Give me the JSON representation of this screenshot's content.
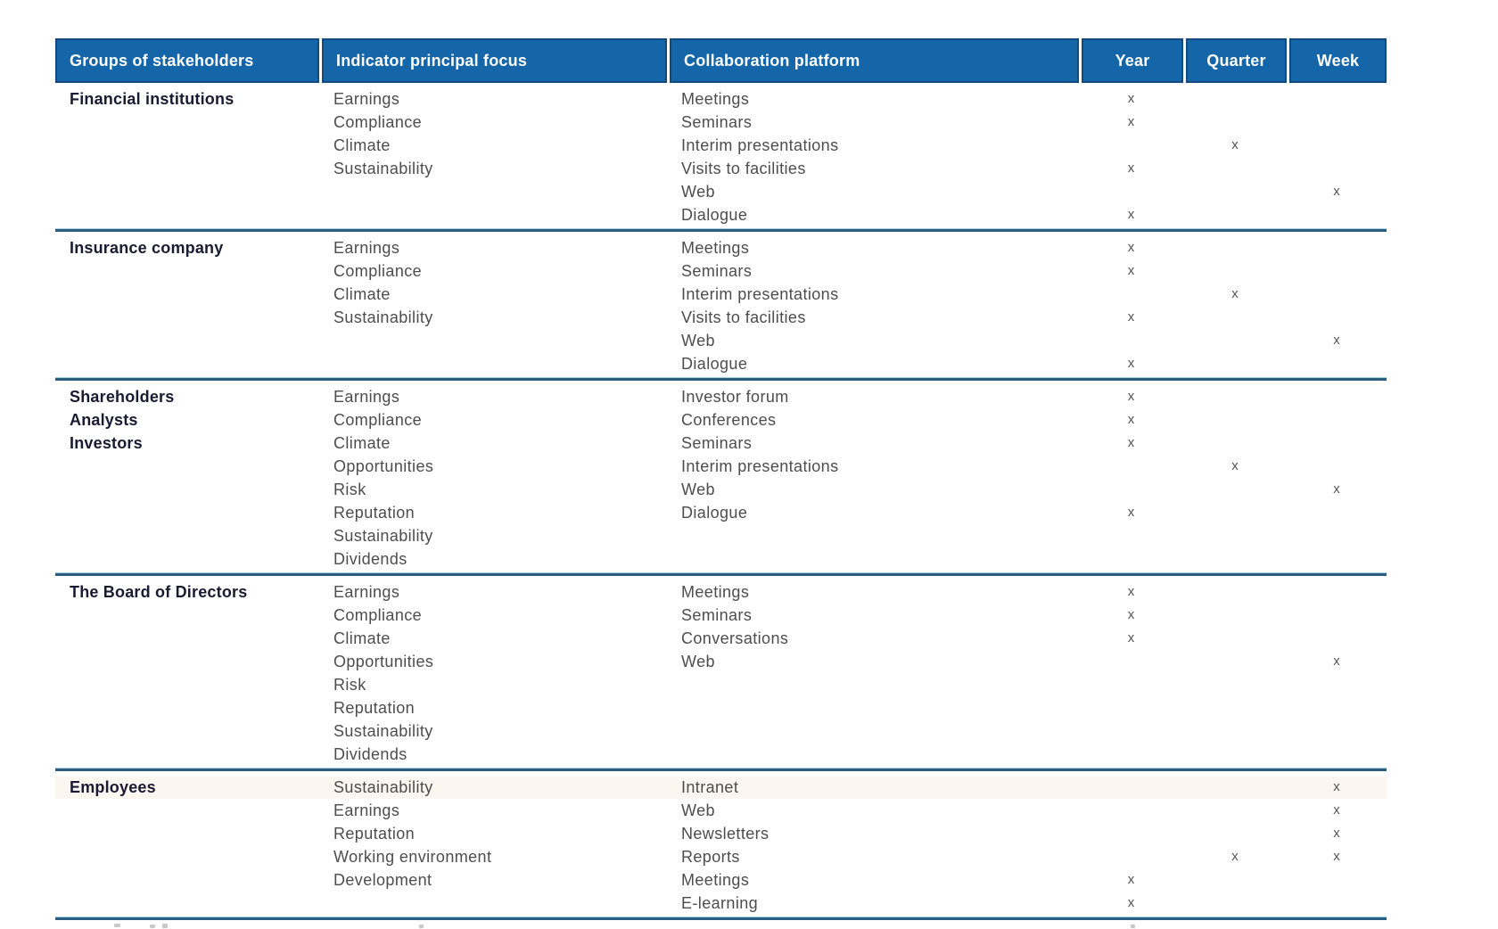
{
  "table": {
    "columns": [
      {
        "key": "group",
        "label": "Groups of stakeholders"
      },
      {
        "key": "indicator",
        "label": "Indicator principal focus"
      },
      {
        "key": "platform",
        "label": "Collaboration platform"
      },
      {
        "key": "year",
        "label": "Year"
      },
      {
        "key": "quarter",
        "label": "Quarter"
      },
      {
        "key": "week",
        "label": "Week"
      }
    ],
    "mark_glyph": "x",
    "rows": [
      {
        "group_lines": [
          "Financial institutions"
        ],
        "indicator_lines": [
          "Earnings",
          "Compliance",
          "Climate",
          "Sustainability"
        ],
        "platform_lines": [
          "Meetings",
          "Seminars",
          "Interim presentations",
          "Visits to facilities",
          "Web",
          "Dialogue"
        ],
        "year_marks": [
          "x",
          "x",
          "",
          "x",
          "",
          "x"
        ],
        "quarter_marks": [
          "",
          "",
          "x",
          "",
          "",
          ""
        ],
        "week_marks": [
          "",
          "",
          "",
          "",
          "x",
          ""
        ]
      },
      {
        "group_lines": [
          "Insurance company"
        ],
        "indicator_lines": [
          "Earnings",
          "Compliance",
          "Climate",
          "Sustainability"
        ],
        "platform_lines": [
          "Meetings",
          "Seminars",
          "Interim presentations",
          "Visits to facilities",
          "Web",
          "Dialogue"
        ],
        "year_marks": [
          "x",
          "x",
          "",
          "x",
          "",
          "x"
        ],
        "quarter_marks": [
          "",
          "",
          "x",
          "",
          "",
          ""
        ],
        "week_marks": [
          "",
          "",
          "",
          "",
          "x",
          ""
        ]
      },
      {
        "group_lines": [
          "Shareholders",
          "Analysts",
          "Investors"
        ],
        "indicator_lines": [
          "Earnings",
          "Compliance",
          "Climate",
          "Opportunities",
          "Risk",
          "Reputation",
          "Sustainability",
          "Dividends"
        ],
        "platform_lines": [
          "Investor forum",
          "Conferences",
          "Seminars",
          "Interim presentations",
          "Web",
          "Dialogue"
        ],
        "year_marks": [
          "x",
          "x",
          "x",
          "",
          "",
          "x"
        ],
        "quarter_marks": [
          "",
          "",
          "",
          "x",
          "",
          ""
        ],
        "week_marks": [
          "",
          "",
          "",
          "",
          "x",
          ""
        ]
      },
      {
        "group_lines": [
          "The Board of Directors"
        ],
        "indicator_lines": [
          "Earnings",
          "Compliance",
          "Climate",
          "Opportunities",
          "Risk",
          "Reputation",
          "Sustainability",
          "Dividends"
        ],
        "platform_lines": [
          "Meetings",
          "Seminars",
          "Conversations",
          "Web"
        ],
        "year_marks": [
          "x",
          "x",
          "x",
          ""
        ],
        "quarter_marks": [
          "",
          "",
          "",
          ""
        ],
        "week_marks": [
          "",
          "",
          "",
          "x"
        ]
      },
      {
        "group_lines": [
          "Employees"
        ],
        "indicator_lines": [
          "Sustainability",
          "Earnings",
          "Reputation",
          "Working environment",
          "Development"
        ],
        "platform_lines": [
          "Intranet",
          "Web",
          "Newsletters",
          "Reports",
          "Meetings",
          "E-learning"
        ],
        "year_marks": [
          "",
          "",
          "",
          "",
          "x",
          "x"
        ],
        "quarter_marks": [
          "",
          "",
          "",
          "x",
          "",
          ""
        ],
        "week_marks": [
          "x",
          "x",
          "x",
          "x",
          "",
          ""
        ]
      }
    ]
  },
  "colors": {
    "header_bg": "#1565a9",
    "header_border": "#114a7f",
    "header_text": "#ffffff",
    "row_separator": "#2b5d7e",
    "row_separator_halo": "#a9cede",
    "body_text": "#4d4d4d",
    "group_text": "#1a1a33",
    "page_bg": "#ffffff"
  }
}
